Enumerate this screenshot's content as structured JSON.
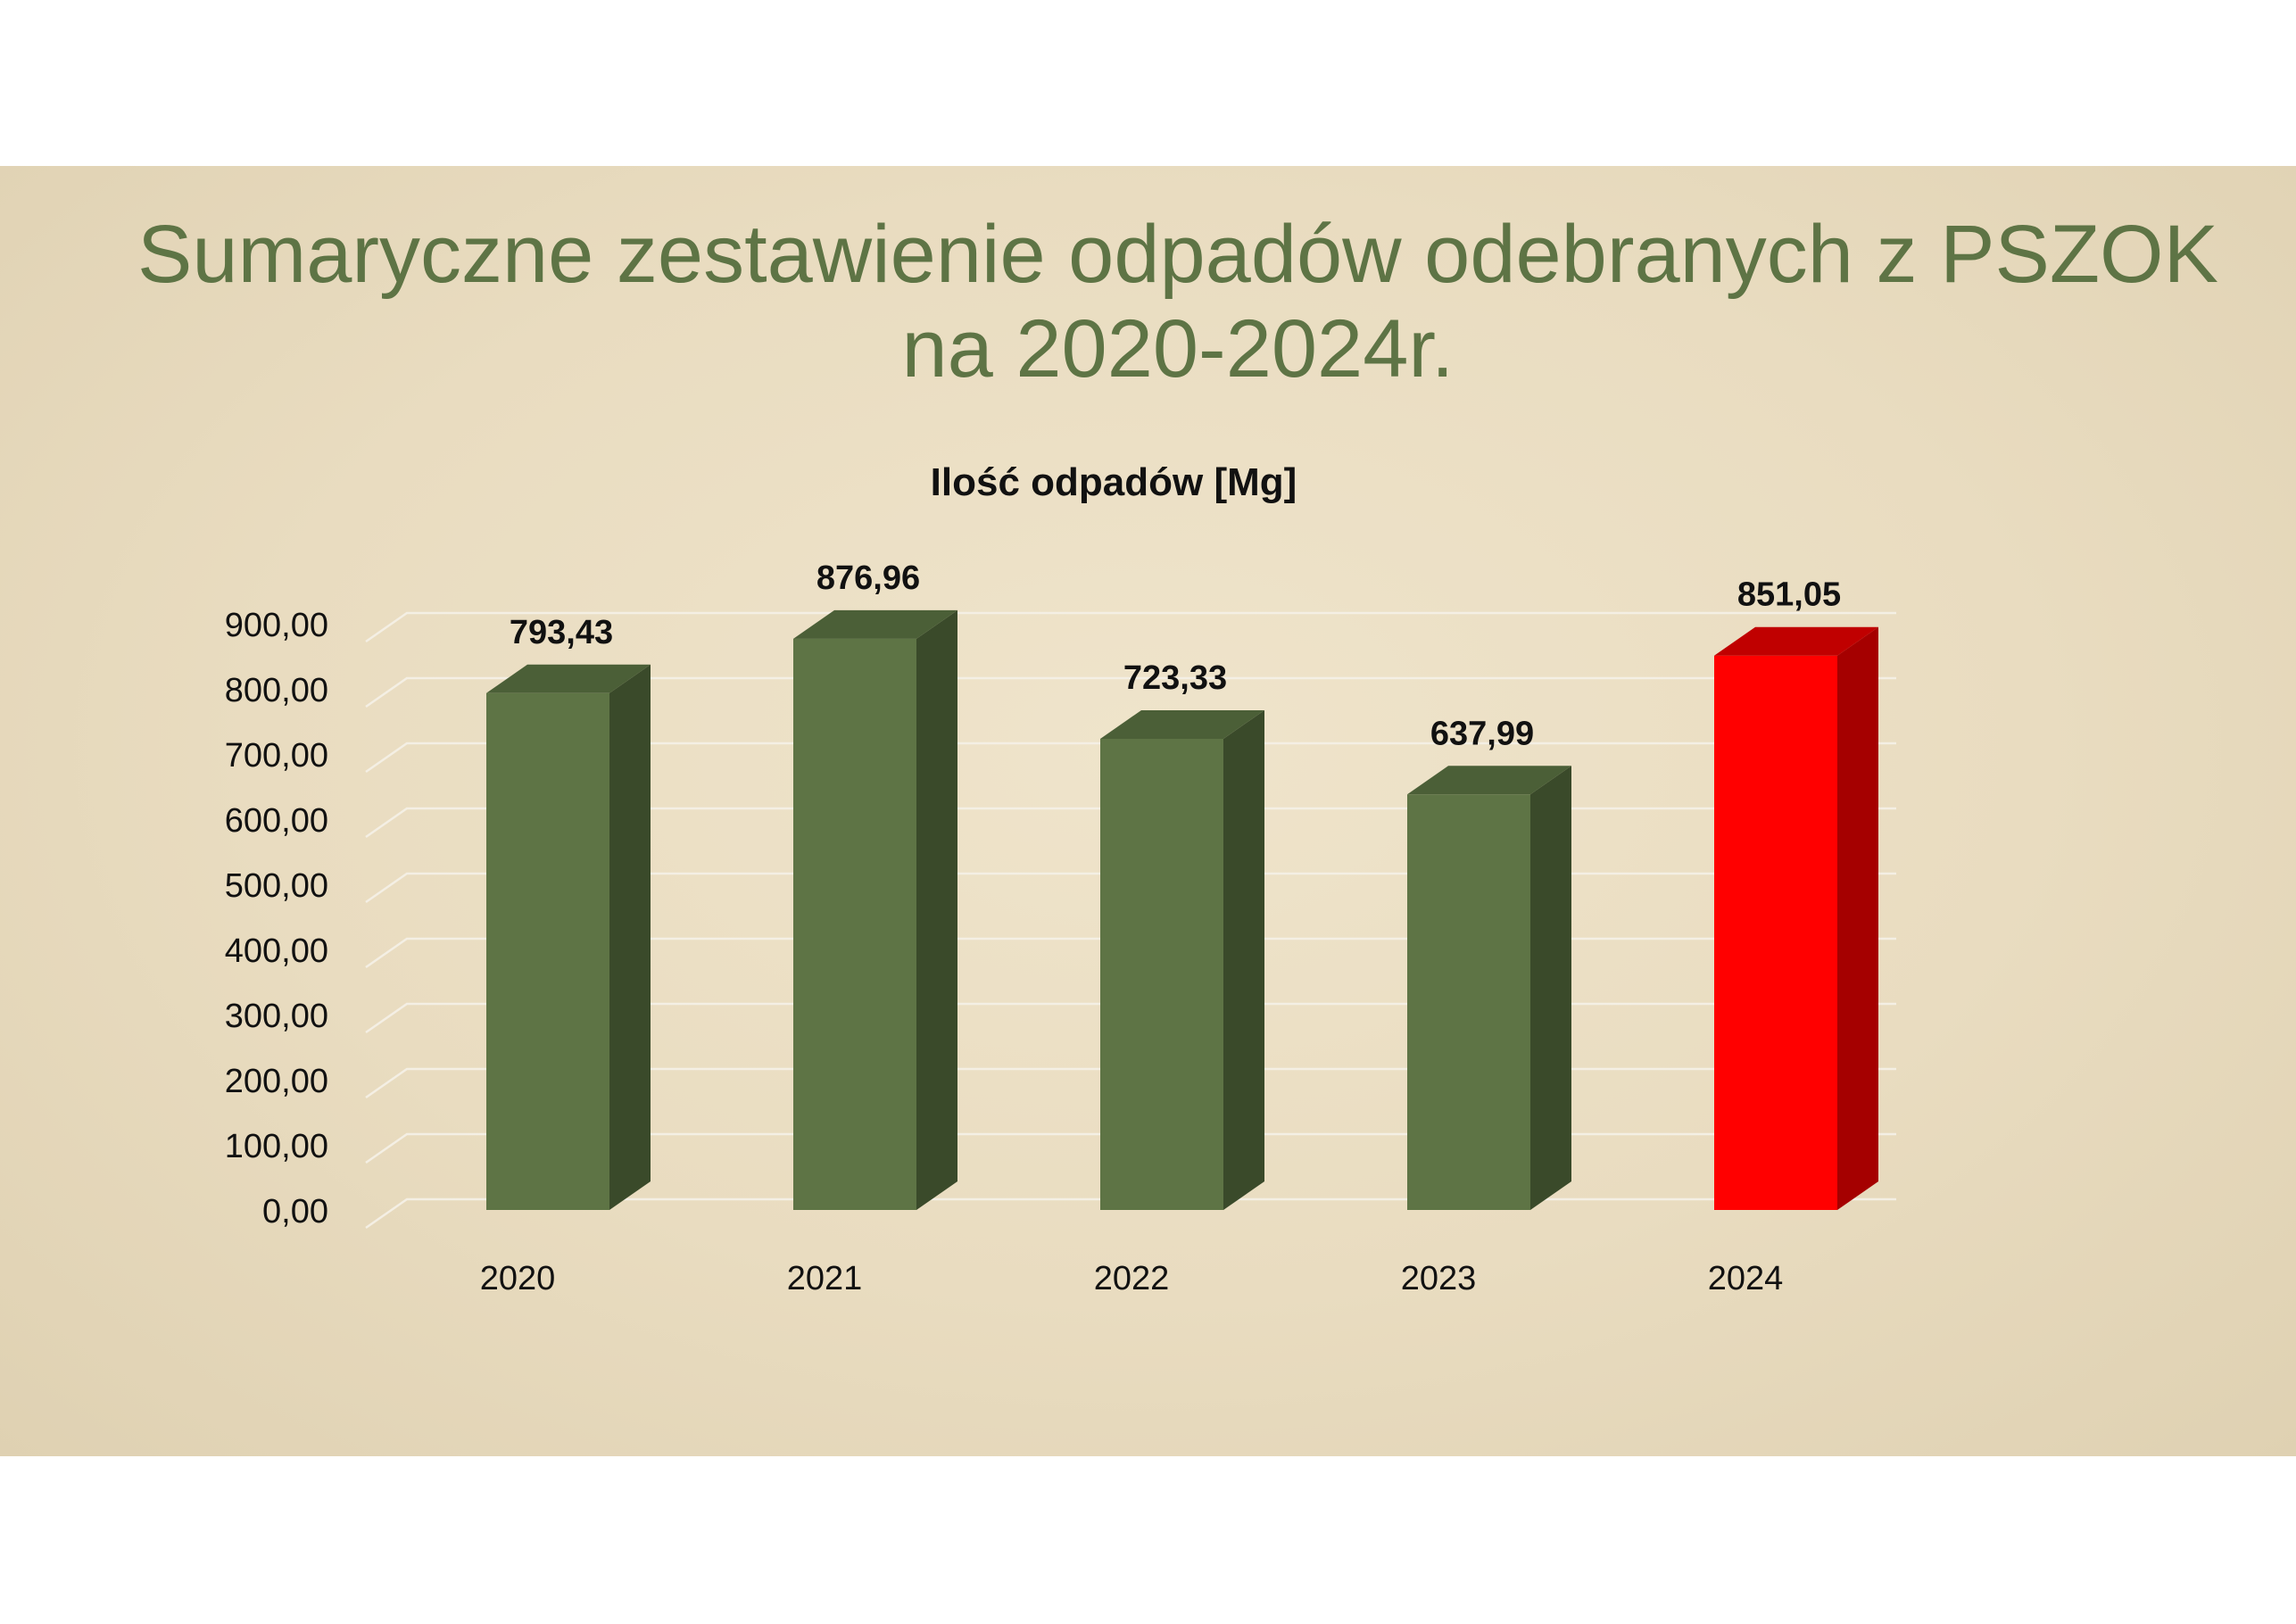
{
  "slide": {
    "title_line1": "Sumaryczne zestawienie odpadów odebranych z PSZOK",
    "title_line2": "na 2020-2024r."
  },
  "chart_data": {
    "type": "bar",
    "title": "Ilość odpadów [Mg]",
    "xlabel": "",
    "ylabel": "",
    "categories": [
      "2020",
      "2021",
      "2022",
      "2023",
      "2024"
    ],
    "values": [
      793.43,
      876.96,
      723.33,
      637.99,
      851.05
    ],
    "value_labels": [
      "793,43",
      "876,96",
      "723,33",
      "637,99",
      "851,05"
    ],
    "ylim": [
      0,
      900
    ],
    "y_ticks": [
      0,
      100,
      200,
      300,
      400,
      500,
      600,
      700,
      800,
      900
    ],
    "y_tick_labels": [
      "0,00",
      "100,00",
      "200,00",
      "300,00",
      "400,00",
      "500,00",
      "600,00",
      "700,00",
      "800,00",
      "900,00"
    ],
    "grid": true,
    "legend": "none",
    "bar_style": "3d-column",
    "colors": {
      "default_front": "#5e7445",
      "default_side": "#3a4a2a",
      "default_top": "#4b5f37",
      "highlight_front": "#ff0000",
      "highlight_side": "#a50000",
      "highlight_top": "#c00000",
      "highlight_category": "2024",
      "gridline": "#f4efe4",
      "title": "#5e7445"
    }
  }
}
